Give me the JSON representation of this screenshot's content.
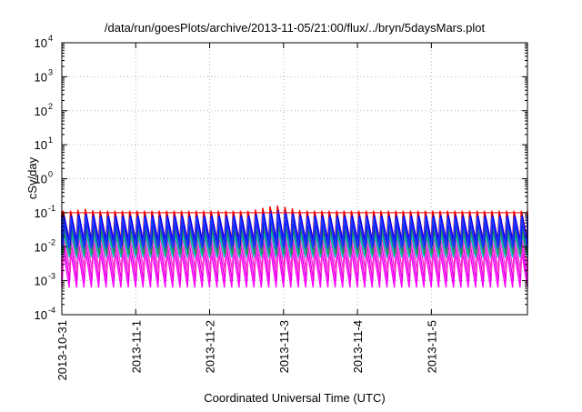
{
  "chart_data": {
    "type": "line",
    "title": "/data/run/goesPlots/archive/2013-11-05/21:00/flux/../bryn/5daysMars.plot",
    "xlabel": "Coordinated Universal Time (UTC)",
    "ylabel": "cSv/day",
    "yscale": "log",
    "ylim": [
      0.0001,
      10000
    ],
    "xlim": [
      0,
      6.3
    ],
    "grid": true,
    "legend": "none",
    "y_ticks": [
      {
        "value": 0.0001,
        "base": "10",
        "exp": "-4"
      },
      {
        "value": 0.001,
        "base": "10",
        "exp": "-3"
      },
      {
        "value": 0.01,
        "base": "10",
        "exp": "-2"
      },
      {
        "value": 0.1,
        "base": "10",
        "exp": "-1"
      },
      {
        "value": 1,
        "base": "10",
        "exp": "0"
      },
      {
        "value": 10,
        "base": "10",
        "exp": "1"
      },
      {
        "value": 100,
        "base": "10",
        "exp": "2"
      },
      {
        "value": 1000,
        "base": "10",
        "exp": "3"
      },
      {
        "value": 10000,
        "base": "10",
        "exp": "4"
      }
    ],
    "x_ticks": [
      {
        "value": 0,
        "label": "2013-10-31"
      },
      {
        "value": 1,
        "label": "2013-11-1"
      },
      {
        "value": 2,
        "label": "2013-11-2"
      },
      {
        "value": 3,
        "label": "2013-11-3"
      },
      {
        "value": 4,
        "label": "2013-11-4"
      },
      {
        "value": 5,
        "label": "2013-11-5"
      }
    ],
    "reference_line": {
      "value": 0.1,
      "color": "#ff0000"
    },
    "sawtooth": {
      "period_days": 0.1,
      "bumps": [
        {
          "start": 2.55,
          "end": 3.25,
          "factor": 1.45
        },
        {
          "start": 0.15,
          "end": 0.45,
          "factor": 1.15
        }
      ]
    },
    "series": [
      {
        "color": "#ff00ff",
        "peak": 0.008,
        "trough": 0.00065
      },
      {
        "color": "#e600e6",
        "peak": 0.013,
        "trough": 0.001
      },
      {
        "color": "#ff33cc",
        "peak": 0.021,
        "trough": 0.0017
      },
      {
        "color": "#00c8c8",
        "peak": 0.03,
        "trough": 0.005
      },
      {
        "color": "#008b8b",
        "peak": 0.04,
        "trough": 0.007
      },
      {
        "color": "#2e8b57",
        "peak": 0.032,
        "trough": 0.006
      },
      {
        "color": "#ff0000",
        "peak": 0.11,
        "trough": 0.015
      },
      {
        "color": "#cc0000",
        "peak": 0.09,
        "trough": 0.012
      },
      {
        "color": "#0000ff",
        "peak": 0.08,
        "trough": 0.011
      },
      {
        "color": "#1e3cff",
        "peak": 0.07,
        "trough": 0.009
      }
    ]
  }
}
